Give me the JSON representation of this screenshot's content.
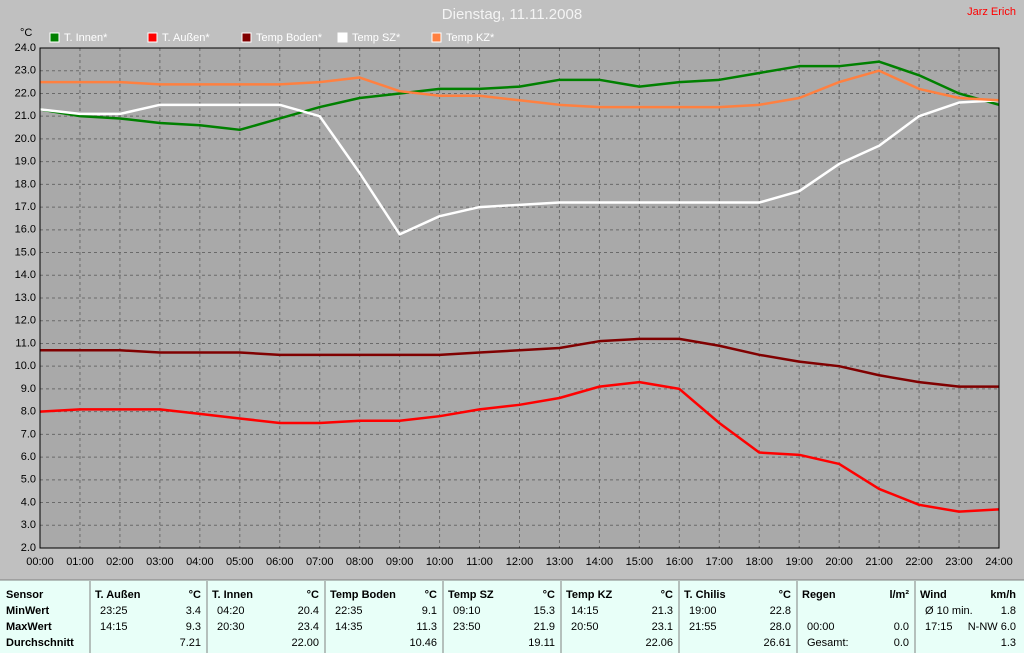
{
  "chart_data": {
    "type": "line",
    "title": "Dienstag, 11.11.2008",
    "author": "Jarz Erich",
    "y_label": "°C",
    "x": [
      0,
      1,
      2,
      3,
      4,
      5,
      6,
      7,
      8,
      9,
      10,
      11,
      12,
      13,
      14,
      15,
      16,
      17,
      18,
      19,
      20,
      21,
      22,
      23,
      24
    ],
    "xlim": [
      0,
      24
    ],
    "xticks": [
      {
        "value": 0,
        "label": "00:00"
      },
      {
        "value": 1,
        "label": "01:00"
      },
      {
        "value": 2,
        "label": "02:00"
      },
      {
        "value": 3,
        "label": "03:00"
      },
      {
        "value": 4,
        "label": "04:00"
      },
      {
        "value": 5,
        "label": "05:00"
      },
      {
        "value": 6,
        "label": "06:00"
      },
      {
        "value": 7,
        "label": "07:00"
      },
      {
        "value": 8,
        "label": "08:00"
      },
      {
        "value": 9,
        "label": "09:00"
      },
      {
        "value": 10,
        "label": "10:00"
      },
      {
        "value": 11,
        "label": "11:00"
      },
      {
        "value": 12,
        "label": "12:00"
      },
      {
        "value": 13,
        "label": "13:00"
      },
      {
        "value": 14,
        "label": "14:00"
      },
      {
        "value": 15,
        "label": "15:00"
      },
      {
        "value": 16,
        "label": "16:00"
      },
      {
        "value": 17,
        "label": "17:00"
      },
      {
        "value": 18,
        "label": "18:00"
      },
      {
        "value": 19,
        "label": "19:00"
      },
      {
        "value": 20,
        "label": "20:00"
      },
      {
        "value": 21,
        "label": "21:00"
      },
      {
        "value": 22,
        "label": "22:00"
      },
      {
        "value": 23,
        "label": "23:00"
      },
      {
        "value": 24,
        "label": "24:00"
      }
    ],
    "ylim": [
      2,
      24
    ],
    "yticks": [
      {
        "value": 2,
        "label": "2.0"
      },
      {
        "value": 3,
        "label": "3.0"
      },
      {
        "value": 4,
        "label": "4.0"
      },
      {
        "value": 5,
        "label": "5.0"
      },
      {
        "value": 6,
        "label": "6.0"
      },
      {
        "value": 7,
        "label": "7.0"
      },
      {
        "value": 8,
        "label": "8.0"
      },
      {
        "value": 9,
        "label": "9.0"
      },
      {
        "value": 10,
        "label": "10.0"
      },
      {
        "value": 11,
        "label": "11.0"
      },
      {
        "value": 12,
        "label": "12.0"
      },
      {
        "value": 13,
        "label": "13.0"
      },
      {
        "value": 14,
        "label": "14.0"
      },
      {
        "value": 15,
        "label": "15.0"
      },
      {
        "value": 16,
        "label": "16.0"
      },
      {
        "value": 17,
        "label": "17.0"
      },
      {
        "value": 18,
        "label": "18.0"
      },
      {
        "value": 19,
        "label": "19.0"
      },
      {
        "value": 20,
        "label": "20.0"
      },
      {
        "value": 21,
        "label": "21.0"
      },
      {
        "value": 22,
        "label": "22.0"
      },
      {
        "value": 23,
        "label": "23.0"
      },
      {
        "value": 24,
        "label": "24.0"
      }
    ],
    "grid": true,
    "series": [
      {
        "name": "T. Innen*",
        "color": "#008000",
        "values": [
          21.3,
          21.0,
          20.9,
          20.7,
          20.6,
          20.4,
          20.9,
          21.4,
          21.8,
          22.0,
          22.2,
          22.2,
          22.3,
          22.6,
          22.6,
          22.3,
          22.5,
          22.6,
          22.9,
          23.2,
          23.2,
          23.4,
          22.8,
          22.0,
          21.5
        ]
      },
      {
        "name": "T. Außen*",
        "color": "#ff0000",
        "values": [
          8.0,
          8.1,
          8.1,
          8.1,
          7.9,
          7.7,
          7.5,
          7.5,
          7.6,
          7.6,
          7.8,
          8.1,
          8.3,
          8.6,
          9.1,
          9.3,
          9.0,
          7.5,
          6.2,
          6.1,
          5.7,
          4.6,
          3.9,
          3.6,
          3.7
        ]
      },
      {
        "name": "Temp Boden*",
        "color": "#800000",
        "values": [
          10.7,
          10.7,
          10.7,
          10.6,
          10.6,
          10.6,
          10.5,
          10.5,
          10.5,
          10.5,
          10.5,
          10.6,
          10.7,
          10.8,
          11.1,
          11.2,
          11.2,
          10.9,
          10.5,
          10.2,
          10.0,
          9.6,
          9.3,
          9.1,
          9.1
        ]
      },
      {
        "name": "Temp SZ*",
        "color": "#ffffff",
        "values": [
          21.3,
          21.1,
          21.1,
          21.5,
          21.5,
          21.5,
          21.5,
          21.0,
          18.5,
          15.8,
          16.6,
          17.0,
          17.1,
          17.2,
          17.2,
          17.2,
          17.2,
          17.2,
          17.2,
          17.7,
          18.9,
          19.7,
          21.0,
          21.6,
          21.7
        ]
      },
      {
        "name": "Temp KZ*",
        "color": "#ff8040",
        "values": [
          22.5,
          22.5,
          22.5,
          22.4,
          22.4,
          22.4,
          22.4,
          22.5,
          22.7,
          22.1,
          21.9,
          21.9,
          21.7,
          21.5,
          21.4,
          21.4,
          21.4,
          21.4,
          21.5,
          21.8,
          22.5,
          23.0,
          22.2,
          21.8,
          21.7
        ]
      }
    ]
  },
  "table": {
    "corner": "Sensor",
    "row_labels": [
      "MinWert",
      "MaxWert",
      "Durchschnitt"
    ],
    "columns": [
      {
        "name": "T. Außen",
        "unit": "°C",
        "cells": [
          {
            "l": "23:25",
            "r": "3.4"
          },
          {
            "l": "14:15",
            "r": "9.3"
          },
          {
            "r": "7.21"
          }
        ]
      },
      {
        "name": "T. Innen",
        "unit": "°C",
        "cells": [
          {
            "l": "04:20",
            "r": "20.4"
          },
          {
            "l": "20:30",
            "r": "23.4"
          },
          {
            "r": "22.00"
          }
        ]
      },
      {
        "name": "Temp Boden",
        "unit": "°C",
        "cells": [
          {
            "l": "22:35",
            "r": "9.1"
          },
          {
            "l": "14:35",
            "r": "11.3"
          },
          {
            "r": "10.46"
          }
        ]
      },
      {
        "name": "Temp SZ",
        "unit": "°C",
        "cells": [
          {
            "l": "09:10",
            "r": "15.3"
          },
          {
            "l": "23:50",
            "r": "21.9"
          },
          {
            "r": "19.11"
          }
        ]
      },
      {
        "name": "Temp KZ",
        "unit": "°C",
        "cells": [
          {
            "l": "14:15",
            "r": "21.3"
          },
          {
            "l": "20:50",
            "r": "23.1"
          },
          {
            "r": "22.06"
          }
        ]
      },
      {
        "name": "T. Chilis",
        "unit": "°C",
        "cells": [
          {
            "l": "19:00",
            "r": "22.8"
          },
          {
            "l": "21:55",
            "r": "28.0"
          },
          {
            "r": "26.61"
          }
        ]
      },
      {
        "name": "Regen",
        "unit": "l/m²",
        "cells": [
          {},
          {
            "l": "00:00",
            "r": "0.0"
          },
          {
            "l": "Gesamt:",
            "r": "0.0"
          }
        ]
      },
      {
        "name": "Wind",
        "unit": "km/h",
        "cells": [
          {
            "l": "Ø 10 min.",
            "r": "1.8"
          },
          {
            "l": "17:15",
            "r": "N-NW 6.0"
          },
          {
            "r": "1.3"
          }
        ]
      }
    ]
  }
}
